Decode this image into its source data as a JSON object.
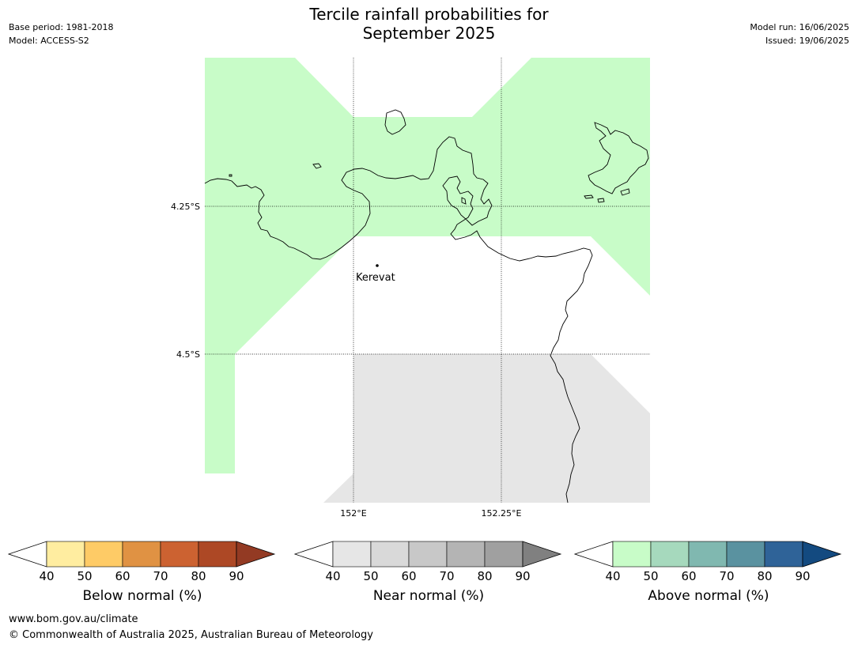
{
  "title_line1": "Tercile rainfall probabilities for",
  "title_line2": "September 2025",
  "meta_left": {
    "base_period": "Base period: 1981-2018",
    "model": "Model: ACCESS-S2"
  },
  "meta_right": {
    "model_run": "Model run: 16/06/2025",
    "issued": "Issued: 19/06/2025"
  },
  "map": {
    "lat_labels": [
      "4.25°S",
      "4.5°S"
    ],
    "lon_labels": [
      "152°E",
      "152.25°E"
    ],
    "place": "Kerevat",
    "colors": {
      "above_40_50": "#c8fcc8",
      "near_40_50": "#e6e6e6",
      "coast": "#000000"
    }
  },
  "legends": [
    {
      "name": "below",
      "label": "Below normal (%)",
      "ticks": [
        "40",
        "50",
        "60",
        "70",
        "80",
        "90"
      ],
      "colors": [
        "#ffeda0",
        "#fecb66",
        "#e09243",
        "#cc6231",
        "#ad4825"
      ],
      "over": "#933a23"
    },
    {
      "name": "near",
      "label": "Near normal (%)",
      "ticks": [
        "40",
        "50",
        "60",
        "70",
        "80",
        "90"
      ],
      "colors": [
        "#e6e6e6",
        "#d9d9d9",
        "#c8c8c8",
        "#b4b4b4",
        "#a0a0a0"
      ],
      "over": "#808080"
    },
    {
      "name": "above",
      "label": "Above normal (%)",
      "ticks": [
        "40",
        "50",
        "60",
        "70",
        "80",
        "90"
      ],
      "colors": [
        "#c8fcc8",
        "#a6d9bd",
        "#80b8b0",
        "#5a92a0",
        "#2f6398"
      ],
      "over": "#134a80"
    }
  ],
  "footer": {
    "url": "www.bom.gov.au/climate",
    "copyright": "© Commonwealth of Australia 2025, Australian Bureau of Meteorology"
  }
}
